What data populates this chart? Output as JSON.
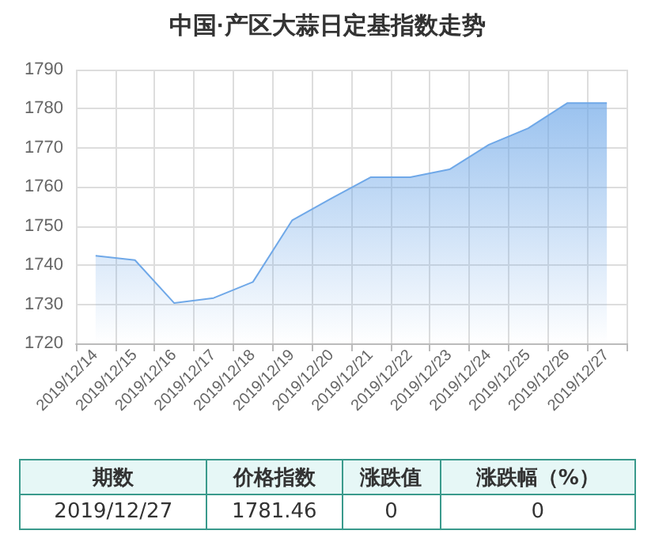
{
  "chart_data": {
    "type": "area",
    "title": "中国·产区大蒜日定基指数走势",
    "categories": [
      "2019/12/14",
      "2019/12/15",
      "2019/12/16",
      "2019/12/17",
      "2019/12/18",
      "2019/12/19",
      "2019/12/20",
      "2019/12/21",
      "2019/12/22",
      "2019/12/23",
      "2019/12/24",
      "2019/12/25",
      "2019/12/26",
      "2019/12/27"
    ],
    "series": [
      {
        "color": "#6fa8e8",
        "values": [
          1742.4,
          1741.3,
          1730.3,
          1731.6,
          1735.7,
          1751.5,
          1757.1,
          1762.5,
          1762.5,
          1764.5,
          1770.8,
          1775.0,
          1781.46,
          1781.46
        ]
      }
    ],
    "ylim": [
      1720,
      1790
    ],
    "yticks": [
      1720,
      1730,
      1740,
      1750,
      1760,
      1770,
      1780,
      1790
    ],
    "grid": true,
    "marker": "none",
    "annotations": [
      "期数",
      "价格指数",
      "涨跌值",
      "涨跌幅（%）",
      "2019/12/27",
      "1781.46",
      "0",
      "0"
    ]
  }
}
